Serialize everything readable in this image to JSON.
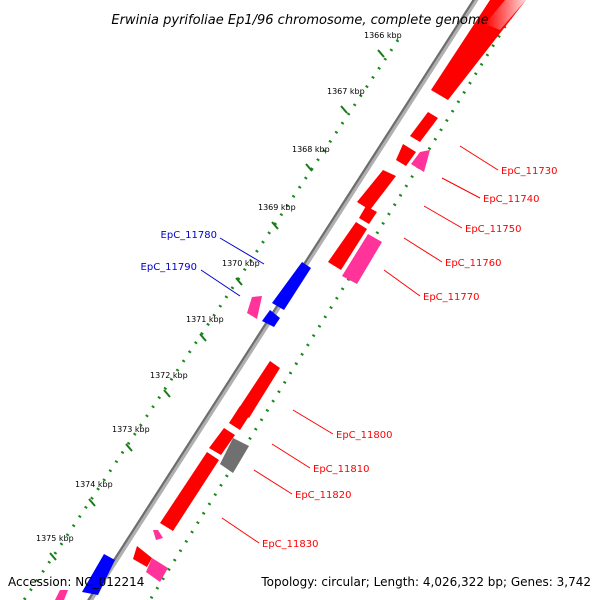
{
  "title": "Erwinia pyrifoliae Ep1/96 chromosome, complete genome",
  "accession": "Accession: NC_012214",
  "summary": "Topology: circular; Length: 4,026,322 bp; Genes: 3,742",
  "colors": {
    "forward_gene": "#ff0000",
    "forward_gene_alt": "#ff3399",
    "reverse_gene": "#0000ff",
    "pseudo_gene": "#707070",
    "backbone": "#808080",
    "tick_marks": "#008000",
    "label_red": "#ff0000",
    "label_blue": "#0000cc"
  },
  "ticks": [
    "1366 kbp",
    "1367 kbp",
    "1368 kbp",
    "1369 kbp",
    "1370 kbp",
    "1371 kbp",
    "1372 kbp",
    "1373 kbp",
    "1374 kbp",
    "1375 kbp"
  ],
  "gene_labels": [
    {
      "text": "EpC_11730",
      "strand": "forward"
    },
    {
      "text": "EpC_11740",
      "strand": "forward"
    },
    {
      "text": "EpC_11750",
      "strand": "forward"
    },
    {
      "text": "EpC_11760",
      "strand": "forward"
    },
    {
      "text": "EpC_11770",
      "strand": "forward"
    },
    {
      "text": "EpC_11780",
      "strand": "reverse"
    },
    {
      "text": "EpC_11790",
      "strand": "reverse"
    },
    {
      "text": "EpC_11800",
      "strand": "forward"
    },
    {
      "text": "EpC_11810",
      "strand": "forward"
    },
    {
      "text": "EpC_11820",
      "strand": "forward"
    },
    {
      "text": "EpC_11830",
      "strand": "forward"
    }
  ]
}
